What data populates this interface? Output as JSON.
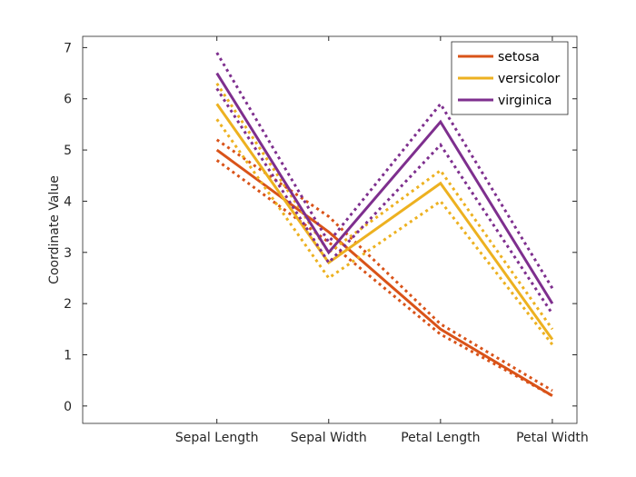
{
  "chart_data": {
    "type": "line",
    "title": "",
    "xlabel": "",
    "ylabel": "Coordinate Value",
    "categories": [
      "Sepal Length",
      "Sepal Width",
      "Petal Length",
      "Petal Width"
    ],
    "xlim": [
      -0.2,
      4.22
    ],
    "ylim": [
      -0.34,
      7.22
    ],
    "yticks": [
      0,
      1,
      2,
      3,
      4,
      5,
      6,
      7
    ],
    "legend_position": "top-right",
    "series": [
      {
        "name": "setosa",
        "color": "#D95319",
        "median": [
          5.0,
          3.4,
          1.5,
          0.2
        ],
        "q25": [
          4.8,
          3.2,
          1.4,
          0.2
        ],
        "q75": [
          5.2,
          3.7,
          1.6,
          0.3
        ]
      },
      {
        "name": "versicolor",
        "color": "#EDB120",
        "median": [
          5.9,
          2.8,
          4.35,
          1.3
        ],
        "q25": [
          5.6,
          2.5,
          4.0,
          1.2
        ],
        "q75": [
          6.3,
          3.0,
          4.6,
          1.5
        ]
      },
      {
        "name": "virginica",
        "color": "#7E2F8E",
        "median": [
          6.5,
          3.0,
          5.55,
          2.0
        ],
        "q25": [
          6.2,
          2.8,
          5.1,
          1.8
        ],
        "q75": [
          6.9,
          3.2,
          5.9,
          2.3
        ]
      }
    ]
  }
}
